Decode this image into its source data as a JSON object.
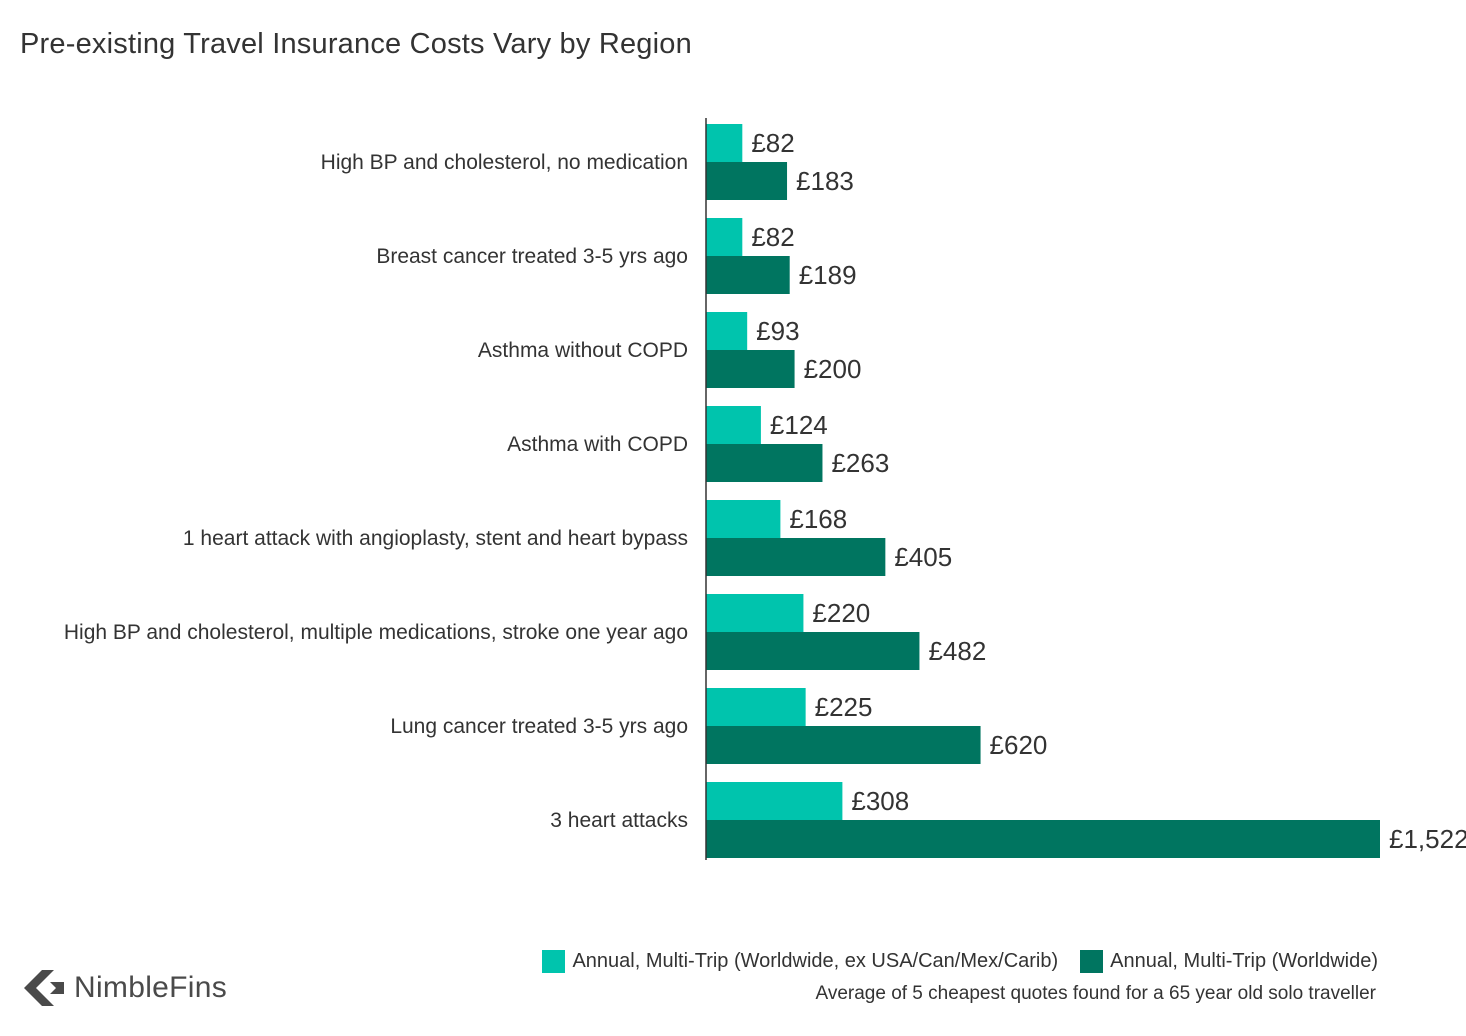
{
  "chart_data": {
    "type": "bar",
    "orientation": "horizontal",
    "title": "Pre-existing Travel Insurance Costs Vary by Region",
    "categories": [
      "High BP and cholesterol, no medication",
      "Breast cancer treated 3-5 yrs ago",
      "Asthma without COPD",
      "Asthma with COPD",
      "1 heart attack with angioplasty, stent and heart bypass",
      "High BP and cholesterol, multiple medications, stroke one year ago",
      "Lung cancer treated 3-5 yrs ago",
      "3 heart attacks"
    ],
    "series": [
      {
        "name": "Annual, Multi-Trip (Worldwide, ex USA/Can/Mex/Carib)",
        "color": "#00c4ad",
        "values": [
          82,
          82,
          93,
          124,
          168,
          220,
          225,
          308
        ],
        "labels": [
          "£82",
          "£82",
          "£93",
          "£124",
          "£168",
          "£220",
          "£225",
          "£308"
        ]
      },
      {
        "name": "Annual, Multi-Trip (Worldwide)",
        "color": "#007560",
        "values": [
          183,
          189,
          200,
          263,
          405,
          482,
          620,
          1522
        ],
        "labels": [
          "£183",
          "£189",
          "£200",
          "£263",
          "£405",
          "£482",
          "£620",
          "£1,522"
        ]
      }
    ],
    "xlim": [
      0,
      1522
    ],
    "grid": false,
    "legend_position": "bottom-right",
    "footnote": "Average of 5 cheapest quotes found for a 65 year old solo traveller"
  },
  "brand": {
    "name": "NimbleFins",
    "logo_icon": "chevron-left-icon",
    "logo_color": "#4a4a4a"
  },
  "colors": {
    "axis": "#333333",
    "text": "#333333"
  }
}
